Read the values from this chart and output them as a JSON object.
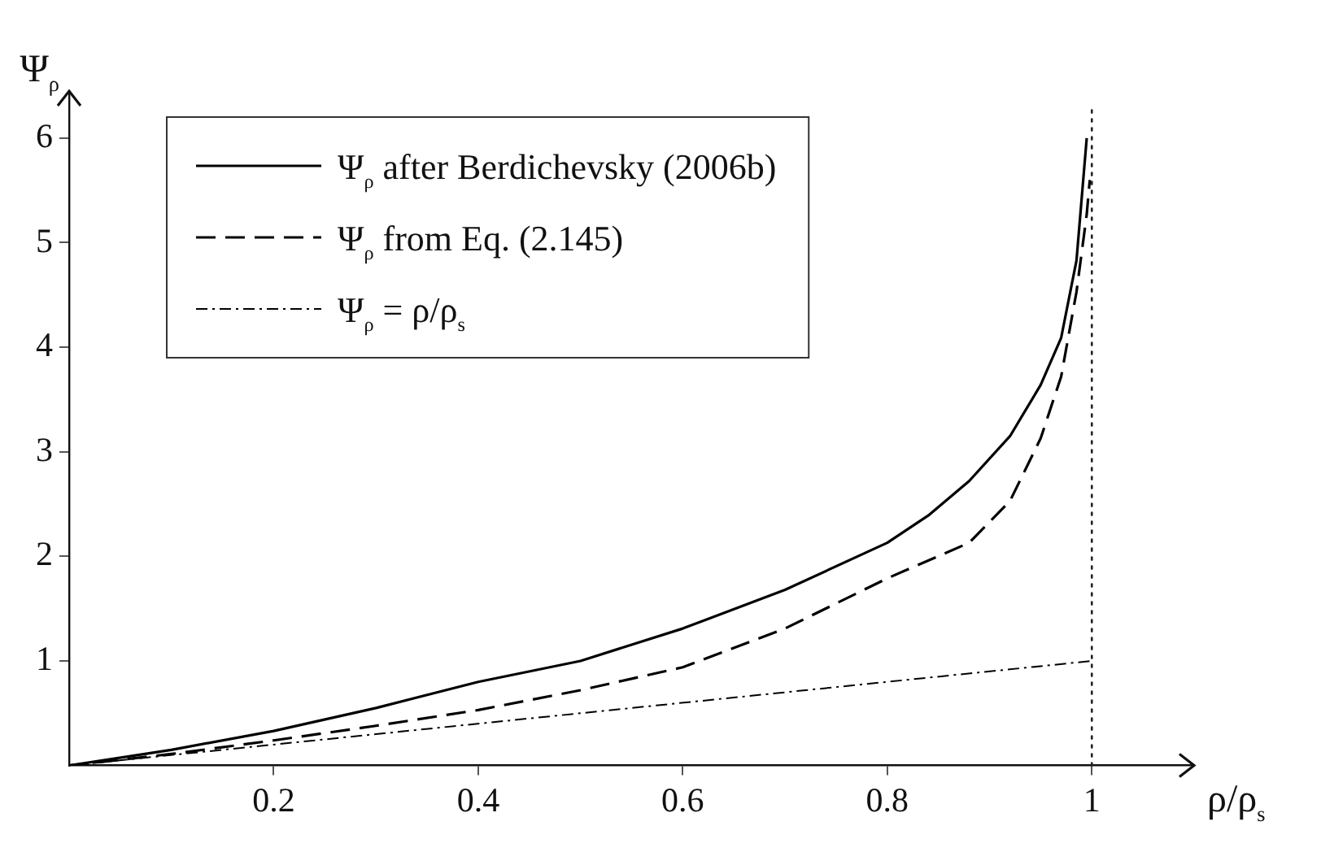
{
  "chart_data": {
    "type": "line",
    "xlabel": "ρ/ρ$_{s}$",
    "ylabel": "Ψ$_{ρ}$",
    "series": [
      {
        "name": "Ψ$_{ρ}$ after Berdichevsky (2006b)",
        "color": "#000000",
        "line_style": "solid",
        "x": [
          0,
          0.1,
          0.2,
          0.3,
          0.4,
          0.5,
          0.6,
          0.7,
          0.8,
          0.84,
          0.88,
          0.92,
          0.95,
          0.97,
          0.985,
          0.995
        ],
        "values": [
          0,
          0.15,
          0.33,
          0.55,
          0.8,
          1.0,
          1.31,
          1.68,
          2.13,
          2.39,
          2.72,
          3.15,
          3.64,
          4.09,
          4.83,
          6.0
        ]
      },
      {
        "name": "Ψ$_{ρ}$ from Eq. (2.145)",
        "color": "#000000",
        "line_style": "dashed",
        "x": [
          0,
          0.1,
          0.2,
          0.3,
          0.4,
          0.5,
          0.6,
          0.7,
          0.8,
          0.88,
          0.92,
          0.95,
          0.97,
          0.985,
          0.995,
          0.998
        ],
        "values": [
          0,
          0.11,
          0.24,
          0.38,
          0.53,
          0.72,
          0.94,
          1.31,
          1.79,
          2.13,
          2.53,
          3.13,
          3.72,
          4.53,
          5.27,
          5.6
        ]
      },
      {
        "name": "Ψ$_{ρ}$ = ρ/ρ$_{s}$",
        "color": "#000000",
        "line_style": "dashdot",
        "x": [
          0,
          1
        ],
        "values": [
          0,
          1
        ]
      }
    ],
    "xlim": [
      0,
      1.1
    ],
    "ylim": [
      0,
      6.45
    ],
    "xticks": [
      0.2,
      0.4,
      0.6,
      0.8,
      1
    ],
    "yticks": [
      1,
      2,
      3,
      4,
      5,
      6
    ],
    "ref_lines": [
      {
        "axis": "x",
        "value": 1,
        "line_style": "dotted"
      }
    ],
    "grid": false,
    "legend": "top left",
    "marker": "none"
  }
}
